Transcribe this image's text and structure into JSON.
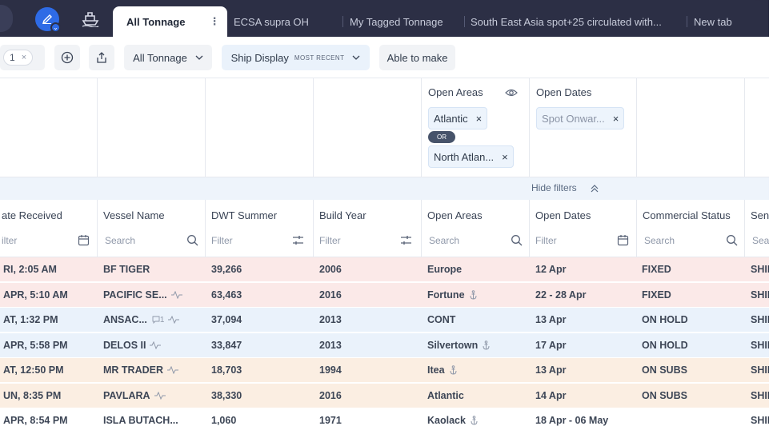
{
  "tabs": [
    {
      "label": "All Tonnage",
      "active": true
    },
    {
      "label": "ECSA supra OH"
    },
    {
      "label": "My Tagged Tonnage"
    },
    {
      "label": "South East Asia spot+25 circulated with..."
    },
    {
      "label": "New tab"
    }
  ],
  "toolbar": {
    "chip_value": "1",
    "chip_close": "×",
    "view_select": "All Tonnage",
    "display_label": "Ship Display",
    "display_sub": "MOST RECENT",
    "able_to_make": "Able to make"
  },
  "filters": {
    "open_areas_title": "Open Areas",
    "open_areas_chips": [
      "Atlantic",
      "North Atlan..."
    ],
    "or_label": "OR",
    "open_dates_title": "Open Dates",
    "open_dates_chip": "Spot Onwar...",
    "chip_close": "×",
    "hide_filters": "Hide filters"
  },
  "columns": [
    {
      "label": "ate Received",
      "filter": "ilter"
    },
    {
      "label": "Vessel Name",
      "filter": "Search"
    },
    {
      "label": "DWT Summer",
      "filter": "Filter"
    },
    {
      "label": "Build Year",
      "filter": "Filter"
    },
    {
      "label": "Open Areas",
      "filter": "Search"
    },
    {
      "label": "Open Dates",
      "filter": "Filter"
    },
    {
      "label": "Commercial Status",
      "filter": "Search"
    },
    {
      "label": "Send",
      "filter": "Sea"
    }
  ],
  "rows": [
    {
      "date": "RI, 2:05 AM",
      "vessel": "BF TIGER",
      "dwt": "39,266",
      "year": "2006",
      "area": "Europe",
      "dates": "12 Apr",
      "status": "FIXED",
      "sender": "SHIP",
      "bg": "#fbe9e8",
      "pulse": false,
      "anchor": false
    },
    {
      "date": "APR, 5:10 AM",
      "vessel": "PACIFIC SE...",
      "dwt": "63,463",
      "year": "2016",
      "area": "Fortune",
      "dates": "22 - 28 Apr",
      "status": "FIXED",
      "sender": "SHIP",
      "bg": "#fbe9e8",
      "pulse": true,
      "anchor": true
    },
    {
      "date": "AT, 1:32 PM",
      "vessel": "ANSAC...",
      "comment_count": "1",
      "dwt": "37,094",
      "year": "2013",
      "area": "CONT",
      "dates": "13 Apr",
      "status": "ON HOLD",
      "sender": "SHIP",
      "bg": "#eaf2fb",
      "pulse": true,
      "anchor": false
    },
    {
      "date": "APR, 5:58 PM",
      "vessel": "DELOS II",
      "dwt": "33,847",
      "year": "2013",
      "area": "Silvertown",
      "dates": "17 Apr",
      "status": "ON HOLD",
      "sender": "SHIP",
      "bg": "#eaf2fb",
      "pulse": true,
      "anchor": true
    },
    {
      "date": "AT, 12:50 PM",
      "vessel": "MR TRADER",
      "dwt": "18,703",
      "year": "1994",
      "area": "Itea",
      "dates": "13 Apr",
      "status": "ON SUBS",
      "sender": "SHIP",
      "bg": "#fbeee2",
      "pulse": true,
      "anchor": true
    },
    {
      "date": "UN, 8:35 PM",
      "vessel": "PAVLARA",
      "dwt": "38,330",
      "year": "2016",
      "area": "Atlantic",
      "dates": "14 Apr",
      "status": "ON SUBS",
      "sender": "SHIP",
      "bg": "#fbeee2",
      "pulse": true,
      "anchor": false
    },
    {
      "date": "APR, 8:54 PM",
      "vessel": "ISLA BUTACH...",
      "dwt": "1,060",
      "year": "1971",
      "area": "Kaolack",
      "dates": "18 Apr - 06 May",
      "status": "",
      "sender": "SHIP",
      "bg": "#ffffff",
      "pulse": false,
      "anchor": true
    }
  ],
  "icons": {
    "avatar": "pen-icon",
    "ship": "ship-icon",
    "add": "plus-circle-icon",
    "share": "share-icon",
    "eye": "eye-icon",
    "calendar": "calendar-icon",
    "search": "search-icon",
    "range": "range-filter-icon"
  }
}
